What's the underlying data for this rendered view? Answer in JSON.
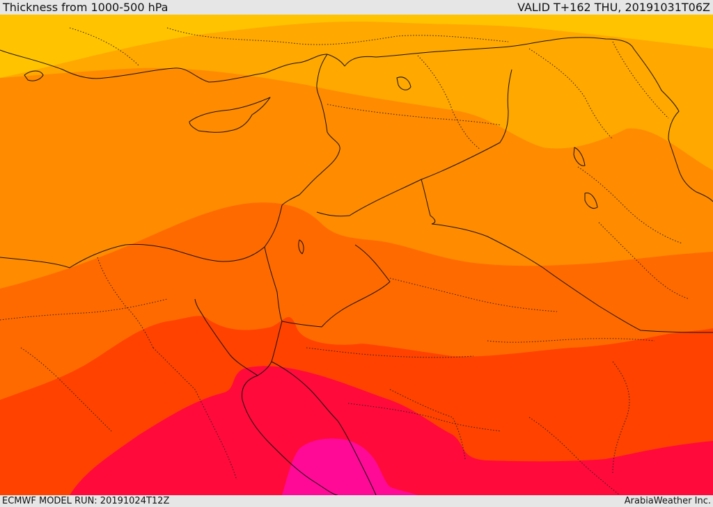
{
  "header": {
    "title": "Thickness from 1000-500 hPa",
    "valid": "VALID T+162 THU, 20191031T06Z"
  },
  "footer": {
    "model_run": "ECMWF MODEL RUN: 20191024T12Z",
    "credit": "ArabiaWeather Inc."
  },
  "map": {
    "region": "Eastern Mediterranean, Levant, Egypt and northern Arabia",
    "field": "1000-500 hPa thickness",
    "colors": {
      "yellow": "#ffc300",
      "light_orange": "#ffa800",
      "orange": "#ff8b00",
      "dark_orange": "#ff6a00",
      "orange_red": "#ff4200",
      "red": "#ff0a3a",
      "magenta": "#ff0a96"
    },
    "borders": "#111111"
  }
}
